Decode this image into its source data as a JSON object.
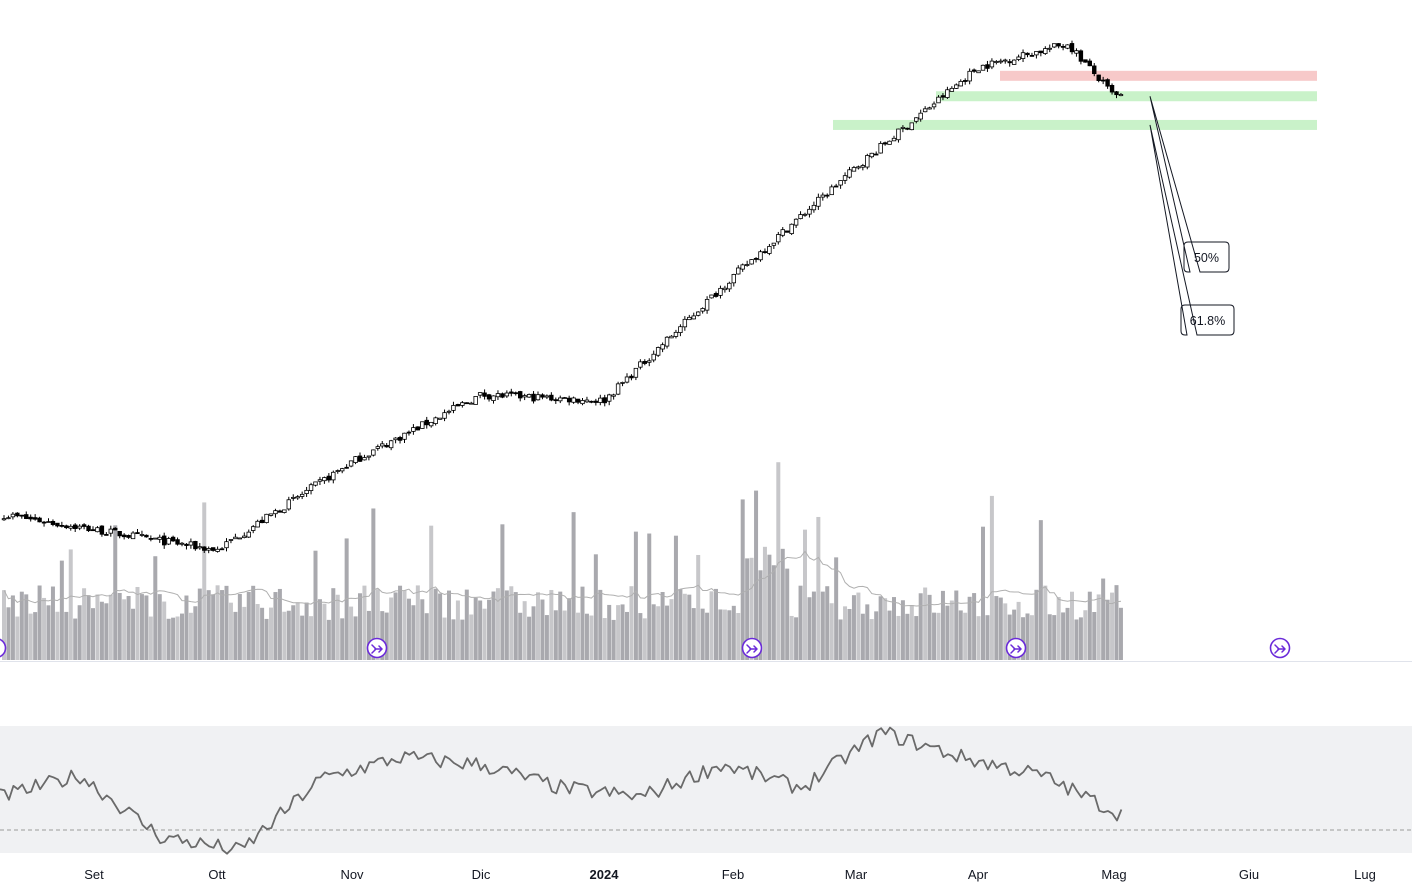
{
  "chart_data": {
    "type": "candlestick",
    "title": "",
    "xlabel": "",
    "ylabel": "",
    "time_axis": {
      "labels": [
        {
          "text": "Set",
          "bold": false
        },
        {
          "text": "Ott",
          "bold": false
        },
        {
          "text": "Nov",
          "bold": false
        },
        {
          "text": "Dic",
          "bold": false
        },
        {
          "text": "2024",
          "bold": true
        },
        {
          "text": "Feb",
          "bold": false
        },
        {
          "text": "Mar",
          "bold": false
        },
        {
          "text": "Apr",
          "bold": false
        },
        {
          "text": "Mag",
          "bold": false
        },
        {
          "text": "Giu",
          "bold": false
        },
        {
          "text": "Lug",
          "bold": false
        }
      ]
    },
    "price_anchors": [
      {
        "month": "Set",
        "close": 12
      },
      {
        "month": "Ott",
        "close": 10
      },
      {
        "month": "Nov",
        "close": 22
      },
      {
        "month": "Dic",
        "close": 40
      },
      {
        "month": "2024",
        "close": 38
      },
      {
        "month": "Feb",
        "close": 115
      },
      {
        "month": "Mar",
        "close": 305
      },
      {
        "month": "Apr",
        "close": 745
      },
      {
        "month": "apr-peak",
        "close": 920
      },
      {
        "month": "Mag",
        "close": 575
      }
    ],
    "zones": [
      {
        "label": "",
        "color": "#f7c9c9",
        "level": 690
      },
      {
        "label": "50%",
        "color": "#c9f2c9",
        "level": 575
      },
      {
        "label": "61.8%",
        "color": "#c9f2c9",
        "level": 445
      }
    ],
    "annotations": [
      {
        "text": "50%"
      },
      {
        "text": "61.8%"
      }
    ],
    "event_markers": [
      {
        "icon": "split-arrow-icon",
        "month": "Nov"
      },
      {
        "icon": "split-arrow-icon",
        "month": "Feb"
      },
      {
        "icon": "split-arrow-icon",
        "month": "Apr"
      },
      {
        "icon": "split-arrow-icon",
        "month": "Giu"
      }
    ],
    "volume": {
      "color": "#a9a9ae",
      "ma_color": "#b0b0b0"
    },
    "oscillator": {
      "type": "line",
      "upper_band": 70,
      "lower_band": 30,
      "midline": 40,
      "series_anchors": [
        50,
        62,
        28,
        20,
        60,
        72,
        68,
        55,
        50,
        68,
        55,
        86,
        72,
        62,
        40
      ],
      "line_color": "#6a6a6a",
      "band_color": "#f0f1f3"
    },
    "grid": false,
    "legend": "none"
  }
}
